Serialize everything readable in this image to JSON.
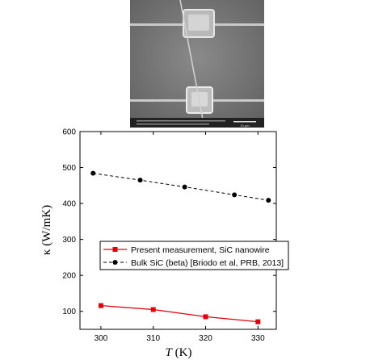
{
  "micrograph": {
    "scale_bar_label": "10 µm"
  },
  "chart_data": {
    "type": "line",
    "xlabel_italic": "T",
    "xlabel_unit": " (K)",
    "ylabel_symbol": "κ",
    "ylabel_unit": " (W/mK)",
    "xlim": [
      296,
      333.5
    ],
    "ylim": [
      50,
      600
    ],
    "xticks": [
      300,
      310,
      320,
      330
    ],
    "yticks": [
      100,
      200,
      300,
      400,
      500,
      600
    ],
    "grid": false,
    "legend_position": "lower-left-center",
    "series": [
      {
        "name": "Present measurement, SiC nanowire",
        "color": "#e0000f",
        "marker": "square",
        "linestyle": "solid",
        "x": [
          300,
          310,
          320,
          330
        ],
        "y": [
          116,
          105,
          85,
          71
        ]
      },
      {
        "name": "Bulk SiC (beta) [Briodo et al, PRB, 2013]",
        "color": "#000000",
        "marker": "circle",
        "linestyle": "dashed",
        "x": [
          298.5,
          307.5,
          316,
          325.5,
          332
        ],
        "y": [
          484,
          465,
          446,
          424,
          409
        ]
      }
    ]
  }
}
